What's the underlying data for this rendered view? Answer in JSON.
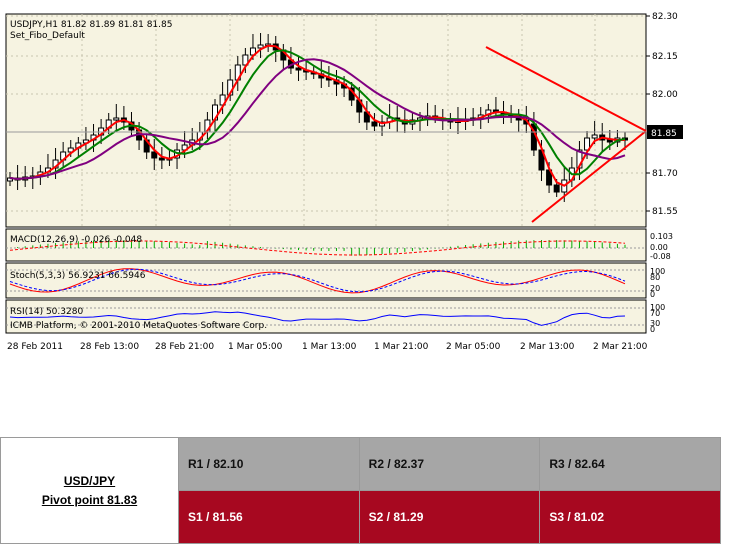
{
  "chart": {
    "header_line1": "USDJPY,H1  81.82 81.89 81.81 81.85",
    "header_line2": "Set_Fibo_Default",
    "current_price_label": "81.85",
    "price_axis": [
      "82.30",
      "82.15",
      "82.00",
      "81.85",
      "81.70",
      "81.55"
    ],
    "macd_label": "MACD(12,26,9) -0.026 -0.048",
    "macd_axis": [
      "0.103",
      "0.00",
      "-0.08"
    ],
    "stoch_label": "Stoch(5,3,3) 56.9231 66.5946",
    "stoch_axis": [
      "100",
      "80",
      "20",
      "0"
    ],
    "rsi_label": "RSI(14) 50.3280",
    "rsi_axis": [
      "100",
      "70",
      "30",
      "0"
    ],
    "copyright": "ICMB Platform, © 2001-2010 MetaQuotes Software Corp.",
    "time_axis": [
      "28 Feb 2011",
      "28 Feb 13:00",
      "28 Feb 21:00",
      "1 Mar 05:00",
      "1 Mar 13:00",
      "1 Mar 21:00",
      "2 Mar 05:00",
      "2 Mar 13:00",
      "2 Mar 21:00"
    ],
    "colors": {
      "bull_candle": "#ffffff",
      "bear_candle": "#000000",
      "ma_fast": "#ff0000",
      "ma_mid": "#008000",
      "ma_slow": "#800080",
      "trendline": "#ff0000",
      "stoch_main": "#ff0000",
      "stoch_signal": "#0000ff",
      "rsi": "#0000ff",
      "macd_hist": "#00aa00",
      "macd_signal": "#ff0000"
    }
  },
  "pivot": {
    "pair": "USD/JPY",
    "pivot_label": "Pivot point 81.83",
    "resistances": [
      "R1 / 82.10",
      "R2 / 82.37",
      "R3 / 82.64"
    ],
    "supports": [
      "S1 / 81.56",
      "S2 / 81.29",
      "S3 / 81.02"
    ],
    "colors": {
      "resistance_bg": "#a6a6a6",
      "support_bg": "#a70820"
    }
  }
}
